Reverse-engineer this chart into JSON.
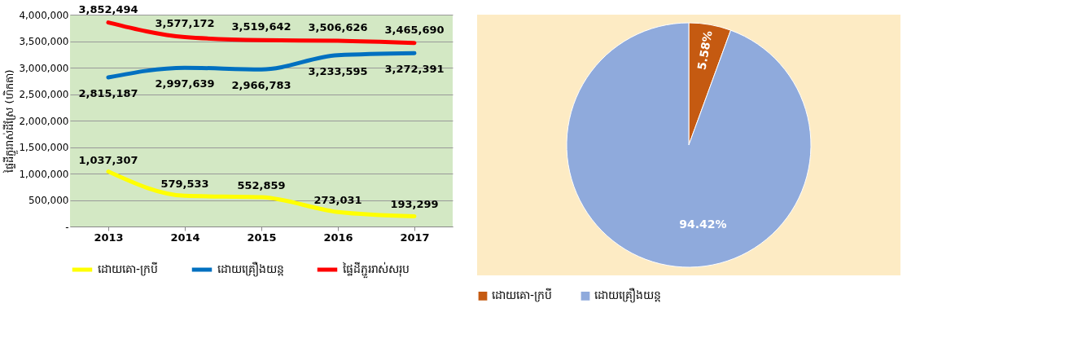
{
  "chart_data": [
    {
      "type": "line",
      "ylabel": "ផ្ទៃដីភ្ជួររាស់ដីស្រែ (ហិកតា)",
      "categories": [
        "2013",
        "2014",
        "2015",
        "2016",
        "2017"
      ],
      "series": [
        {
          "name": "ដោយគោ-ក្របី",
          "color": "#ffff00",
          "values": [
            1037307,
            579533,
            552859,
            273031,
            193299
          ],
          "value_labels": [
            "1,037,307",
            "579,533",
            "552,859",
            "273,031",
            "193,299"
          ]
        },
        {
          "name": "ដោយគ្រឿងយន្ត",
          "color": "#0070c0",
          "values": [
            2815187,
            2997639,
            2966783,
            3233595,
            3272391
          ],
          "value_labels": [
            "2,815,187",
            "2,997,639",
            "2,966,783",
            "3,233,595",
            "3,272,391"
          ]
        },
        {
          "name": "ផ្ទៃដីភ្ជួររាស់សរុប",
          "color": "#ff0000",
          "values": [
            3852494,
            3577172,
            3519642,
            3506626,
            3465690
          ],
          "value_labels": [
            "3,852,494",
            "3,577,172",
            "3,519,642",
            "3,506,626",
            "3,465,690"
          ]
        }
      ],
      "ylim": [
        0,
        4000000
      ],
      "yticks": [
        {
          "value": 0,
          "label": "-"
        },
        {
          "value": 500000,
          "label": "500,000"
        },
        {
          "value": 1000000,
          "label": "1,000,000"
        },
        {
          "value": 1500000,
          "label": "1,500,000"
        },
        {
          "value": 2000000,
          "label": "2,000,000"
        },
        {
          "value": 2500000,
          "label": "2,500,000"
        },
        {
          "value": 3000000,
          "label": "3,000,000"
        },
        {
          "value": 3500000,
          "label": "3,500,000"
        },
        {
          "value": 4000000,
          "label": "4,000,000"
        }
      ],
      "grid": "y",
      "legend": "bottom",
      "line_style": "solid"
    },
    {
      "type": "pie",
      "categories": [
        "ដោយគោ-ក្របី",
        "ដោយគ្រឿងយន្ត"
      ],
      "values": [
        5.58,
        94.42
      ],
      "colors": [
        "#c55a11",
        "#8faadc"
      ],
      "value_labels": [
        "5.58%",
        "94.42%"
      ],
      "legend": "bottom"
    }
  ]
}
